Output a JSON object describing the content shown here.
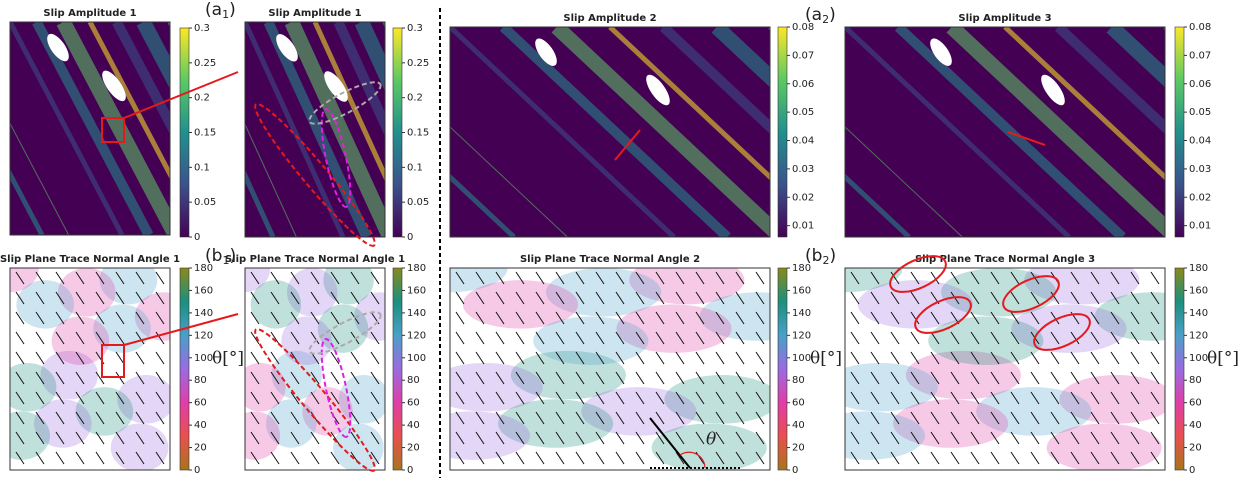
{
  "chart_data": [
    {
      "type": "heatmap",
      "kind": "amplitude",
      "title": "Slip Amplitude 1",
      "clim": [
        0,
        0.3
      ],
      "cticks": [
        0,
        0.05,
        0.1,
        0.15,
        0.2,
        0.25,
        0.3
      ],
      "colormap": [
        "#440154",
        "#3b528b",
        "#21908d",
        "#5dc963",
        "#fde725"
      ]
    },
    {
      "type": "heatmap",
      "kind": "amplitude",
      "title": "Slip Amplitude 1",
      "panel_label": {
        "open": "(a",
        "sub": "1",
        "close": ")"
      },
      "clim": [
        0,
        0.3
      ],
      "cticks": [
        0,
        0.05,
        0.1,
        0.15,
        0.2,
        0.25,
        0.3
      ],
      "colormap": [
        "#440154",
        "#3b528b",
        "#21908d",
        "#5dc963",
        "#fde725"
      ]
    },
    {
      "type": "heatmap",
      "kind": "amplitude",
      "title": "Slip Amplitude 2",
      "clim": [
        0.006,
        0.08
      ],
      "cticks": [
        0.01,
        0.02,
        0.03,
        0.04,
        0.05,
        0.06,
        0.07,
        0.08
      ],
      "colormap": [
        "#440154",
        "#3b528b",
        "#21908d",
        "#5dc963",
        "#fde725"
      ]
    },
    {
      "type": "heatmap",
      "kind": "amplitude",
      "title": "Slip Amplitude 3",
      "panel_label": {
        "open": "(a",
        "sub": "2",
        "close": ")"
      },
      "clim": [
        0.006,
        0.08
      ],
      "cticks": [
        0.01,
        0.02,
        0.03,
        0.04,
        0.05,
        0.06,
        0.07,
        0.08
      ],
      "colormap": [
        "#440154",
        "#3b528b",
        "#21908d",
        "#5dc963",
        "#fde725"
      ]
    },
    {
      "type": "heatmap",
      "kind": "angle",
      "title": "Slip Plane Trace Normal Angle 1",
      "clim": [
        0,
        180
      ],
      "cticks": [
        0,
        20,
        40,
        60,
        80,
        100,
        120,
        140,
        160,
        180
      ],
      "colorbar_label": "θ[°]",
      "colormap": [
        "#a8751c",
        "#e8504f",
        "#e03ea8",
        "#9a6be0",
        "#4aa0c8",
        "#1c8f7e",
        "#8a8a1a"
      ]
    },
    {
      "type": "heatmap",
      "kind": "angle",
      "title": "Slip Plane Trace Normal Angle 1",
      "panel_label": {
        "open": "(b",
        "sub": "1",
        "close": ")"
      },
      "clim": [
        0,
        180
      ],
      "cticks": [
        0,
        20,
        40,
        60,
        80,
        100,
        120,
        140,
        160,
        180
      ],
      "colormap": [
        "#a8751c",
        "#e8504f",
        "#e03ea8",
        "#9a6be0",
        "#4aa0c8",
        "#1c8f7e",
        "#8a8a1a"
      ]
    },
    {
      "type": "heatmap",
      "kind": "angle",
      "title": "Slip Plane Trace Normal Angle 2",
      "annotation": "θ",
      "clim": [
        0,
        180
      ],
      "cticks": [
        0,
        20,
        40,
        60,
        80,
        100,
        120,
        140,
        160,
        180
      ],
      "colorbar_label": "θ[°]",
      "colormap": [
        "#a8751c",
        "#e8504f",
        "#e03ea8",
        "#9a6be0",
        "#4aa0c8",
        "#1c8f7e",
        "#8a8a1a"
      ]
    },
    {
      "type": "heatmap",
      "kind": "angle",
      "title": "Slip Plane Trace Normal Angle 3",
      "panel_label": {
        "open": "(b",
        "sub": "2",
        "close": ")"
      },
      "clim": [
        0,
        180
      ],
      "cticks": [
        0,
        20,
        40,
        60,
        80,
        100,
        120,
        140,
        160,
        180
      ],
      "colorbar_label": "θ[°]",
      "colormap": [
        "#a8751c",
        "#e8504f",
        "#e03ea8",
        "#9a6be0",
        "#4aa0c8",
        "#1c8f7e",
        "#8a8a1a"
      ]
    }
  ]
}
